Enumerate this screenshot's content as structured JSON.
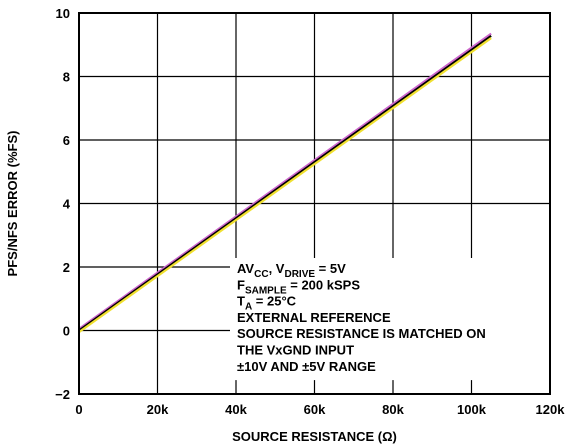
{
  "chart_data": {
    "type": "line",
    "xlabel": "SOURCE RESISTANCE (Ω)",
    "ylabel": "PFS/NFS ERROR (%FS)",
    "xlim": [
      0,
      120000
    ],
    "ylim": [
      -2,
      10
    ],
    "x_ticks": [
      0,
      20000,
      40000,
      60000,
      80000,
      100000,
      120000
    ],
    "x_tick_labels": [
      "0",
      "20k",
      "40k",
      "60k",
      "80k",
      "100k",
      "120k"
    ],
    "y_ticks": [
      -2,
      0,
      2,
      4,
      6,
      8,
      10
    ],
    "y_tick_labels": [
      "−2",
      "0",
      "2",
      "4",
      "6",
      "8",
      "10"
    ],
    "grid": true,
    "series": [
      {
        "color": "#cc66cc",
        "x": [
          0,
          105000
        ],
        "y": [
          0.05,
          9.35
        ]
      },
      {
        "color": "#000000",
        "x": [
          0,
          105000
        ],
        "y": [
          0.0,
          9.28
        ]
      },
      {
        "color": "#f0e030",
        "x": [
          0,
          105000
        ],
        "y": [
          -0.05,
          9.21
        ]
      }
    ],
    "annotation": [
      {
        "main": "AV",
        "sub": "CC",
        "rest": ", V",
        "sub2": "DRIVE",
        "rest2": " = 5V"
      },
      {
        "main": "F",
        "sub": "SAMPLE",
        "rest": " = 200 kSPS"
      },
      {
        "main": "T",
        "sub": "A",
        "rest": " = 25°C"
      },
      {
        "main": "EXTERNAL REFERENCE"
      },
      {
        "main": "SOURCE RESISTANCE IS MATCHED ON"
      },
      {
        "main": "THE VxGND INPUT"
      },
      {
        "main": "±10V AND ±5V RANGE"
      }
    ]
  }
}
